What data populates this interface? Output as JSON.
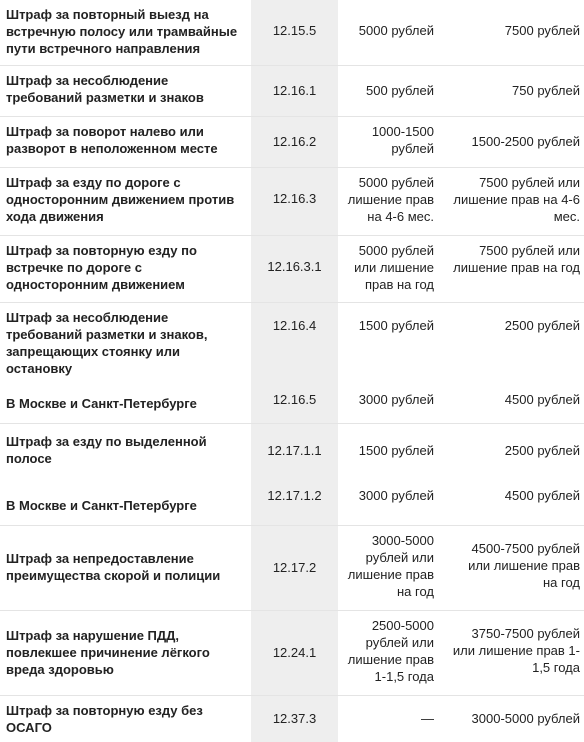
{
  "rows": [
    {
      "name": "Штраф за повторный выезд на встречную полосу или трамвайные пути встречного направления",
      "code": "12.15.5",
      "first": "5000 рублей",
      "repeat": "7500 рублей"
    },
    {
      "name": "Штраф за несоблюдение требований разметки и знаков",
      "code": "12.16.1",
      "first": "500 рублей",
      "repeat": "750 рублей"
    },
    {
      "name": "Штраф за поворот налево или разворот в неположенном месте",
      "code": "12.16.2",
      "first": "1000-1500 рублей",
      "repeat": "1500-2500 рублей"
    },
    {
      "name": "Штраф за езду по дороге с односторонним движением против хода движения",
      "code": "12.16.3",
      "first": "5000 рублей лишение прав на 4-6 мес.",
      "repeat": "7500 рублей или лишение прав на 4-6 мес."
    },
    {
      "name": "Штраф за повторную езду по встречке по дороге с односторонним движением",
      "code": "12.16.3.1",
      "first": "5000 рублей или лишение прав на год",
      "repeat": "7500 рублей или лишение прав на год"
    },
    {
      "name": "Штраф за несоблюдение требований разметки и знаков, запрещающих стоянку или остановку",
      "code": "12.16.4",
      "first": "1500 рублей",
      "repeat": "2500 рублей"
    },
    {
      "name": "В Москве и Санкт-Петербурге",
      "code": "12.16.5",
      "first": "3000 рублей",
      "repeat": "4500 рублей"
    },
    {
      "name": "Штраф за езду по выделенной полосе",
      "code": "12.17.1.1",
      "first": "1500 рублей",
      "repeat": "2500 рублей"
    },
    {
      "name": "В Москве и Санкт-Петербурге",
      "code": "12.17.1.2",
      "first": "3000 рублей",
      "repeat": "4500 рублей"
    },
    {
      "name": "Штраф за непредоставление преимущества скорой и полиции",
      "code": "12.17.2",
      "first": "3000-5000 рублей или лишение прав на год",
      "repeat": "4500-7500 рублей или лишение прав на год"
    },
    {
      "name": "Штраф за нарушение ПДД, повлекшее причинение лёгкого вреда здоровью",
      "code": "12.24.1",
      "first": "2500-5000 рублей или лишение прав 1-1,5 года",
      "repeat": "3750-7500 рублей или лишение прав 1-1,5 года"
    },
    {
      "name": "Штраф за повторную езду без ОСАГО",
      "code": "12.37.3",
      "first": "—",
      "repeat": "3000-5000 рублей"
    }
  ]
}
